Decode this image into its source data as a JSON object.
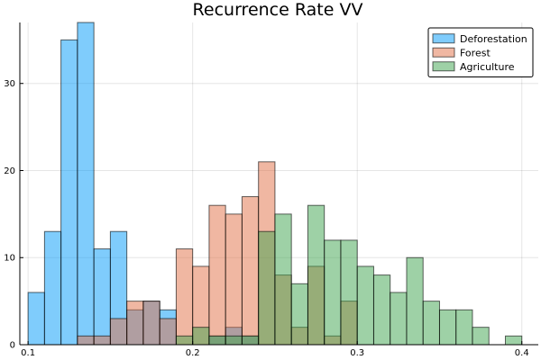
{
  "chart_data": {
    "type": "bar",
    "title": "Recurrence Rate VV",
    "xlabel": "",
    "ylabel": "",
    "xlim": [
      0.095,
      0.41
    ],
    "ylim": [
      0,
      37
    ],
    "xticks": [
      0.1,
      0.2,
      0.3,
      0.4
    ],
    "xtick_labels": [
      "0.1",
      "0.2",
      "0.3",
      "0.4"
    ],
    "yticks": [
      0,
      10,
      20,
      30
    ],
    "ytick_labels": [
      "0",
      "10",
      "20",
      "30"
    ],
    "bin_edges": [
      0.1,
      0.11,
      0.12,
      0.13,
      0.14,
      0.15,
      0.16,
      0.17,
      0.18,
      0.19,
      0.2,
      0.21,
      0.22,
      0.23,
      0.24,
      0.25,
      0.26,
      0.27,
      0.28,
      0.29,
      0.3,
      0.31,
      0.32,
      0.33,
      0.34,
      0.35,
      0.36,
      0.37,
      0.38,
      0.39,
      0.4
    ],
    "grid": true,
    "legend_position": "top-right",
    "series": [
      {
        "name": "Deforestation",
        "color": "#009af9",
        "values": [
          6,
          13,
          35,
          37,
          11,
          13,
          4,
          5,
          4,
          0,
          0,
          1,
          2,
          1,
          0,
          0,
          0,
          0,
          0,
          0,
          0,
          0,
          0,
          0,
          0,
          0,
          0,
          0,
          0,
          0
        ]
      },
      {
        "name": "Forest",
        "color": "#e26f46",
        "values": [
          0,
          0,
          0,
          1,
          1,
          3,
          5,
          5,
          3,
          11,
          9,
          16,
          15,
          17,
          21,
          8,
          2,
          9,
          1,
          5,
          0,
          0,
          0,
          0,
          0,
          0,
          0,
          0,
          0,
          0
        ]
      },
      {
        "name": "Agriculture",
        "color": "#3da44d",
        "values": [
          0,
          0,
          0,
          0,
          0,
          0,
          0,
          0,
          0,
          1,
          2,
          1,
          1,
          1,
          13,
          15,
          7,
          16,
          12,
          12,
          9,
          8,
          6,
          10,
          5,
          4,
          4,
          2,
          0,
          1
        ]
      }
    ]
  }
}
